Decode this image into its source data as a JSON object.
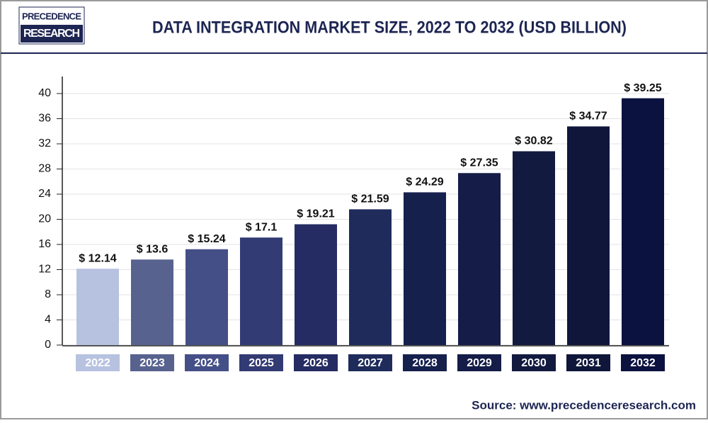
{
  "logo": {
    "line1": "PRECEDENCE",
    "line2": "RESEARCH"
  },
  "chart_data": {
    "type": "bar",
    "title": "DATA INTEGRATION MARKET SIZE, 2022 TO 2032 (USD BILLION)",
    "source": "Source: www.precedenceresearch.com",
    "categories": [
      "2022",
      "2023",
      "2024",
      "2025",
      "2026",
      "2027",
      "2028",
      "2029",
      "2030",
      "2031",
      "2032"
    ],
    "values": [
      12.14,
      13.6,
      15.24,
      17.1,
      19.21,
      21.59,
      24.29,
      27.35,
      30.82,
      34.77,
      39.25
    ],
    "value_labels": [
      "$ 12.14",
      "$ 13.6",
      "$ 15.24",
      "$ 17.1",
      "$ 19.21",
      "$ 21.59",
      "$ 24.29",
      "$ 27.35",
      "$ 30.82",
      "$ 34.77",
      "$ 39.25"
    ],
    "colors": [
      "#b7c2e0",
      "#58628f",
      "#454f87",
      "#323b73",
      "#252c63",
      "#1f2c5b",
      "#16204d",
      "#141c47",
      "#121a40",
      "#0f163a",
      "#0b1240"
    ],
    "ylim": [
      0,
      40
    ],
    "yticks": [
      0,
      4,
      8,
      12,
      16,
      20,
      24,
      28,
      32,
      36,
      40
    ],
    "grid": true
  }
}
